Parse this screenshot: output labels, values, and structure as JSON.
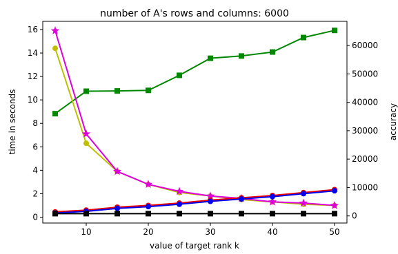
{
  "chart_data": {
    "type": "line",
    "title": "number of A's rows and columns: 6000",
    "xlabel": "value of target rank k",
    "ylabel_left": "time in seconds",
    "ylabel_right": "accuracy",
    "xlim": [
      3,
      52
    ],
    "ylim_left": [
      -0.5,
      16.7
    ],
    "ylim_right": [
      -2500,
      68500
    ],
    "x_ticks": [
      10,
      20,
      30,
      40,
      50
    ],
    "y_ticks_left": [
      0,
      2,
      4,
      6,
      8,
      10,
      12,
      14,
      16
    ],
    "y_ticks_right": [
      0,
      10000,
      20000,
      30000,
      40000,
      50000,
      60000
    ],
    "x": [
      5,
      10,
      15,
      20,
      25,
      30,
      35,
      40,
      45,
      50
    ],
    "grid": false,
    "series": [
      {
        "axis": "right",
        "color": "#008800",
        "marker": "square",
        "values": [
          36000,
          43900,
          44000,
          44200,
          49500,
          55500,
          56300,
          57700,
          62800,
          65300
        ]
      },
      {
        "axis": "left",
        "color": "#bfbf00",
        "marker": "circle",
        "values": [
          14.4,
          6.3,
          3.9,
          2.8,
          2.1,
          1.8,
          1.5,
          1.3,
          1.1,
          1.0
        ]
      },
      {
        "axis": "left",
        "color": "#dd00dd",
        "marker": "star",
        "values": [
          15.9,
          7.1,
          3.9,
          2.8,
          2.2,
          1.8,
          1.6,
          1.3,
          1.2,
          1.0
        ]
      },
      {
        "axis": "left",
        "color": "#ee0000",
        "marker": "circle",
        "values": [
          0.45,
          0.6,
          0.85,
          1.0,
          1.2,
          1.45,
          1.65,
          1.85,
          2.1,
          2.35
        ]
      },
      {
        "axis": "left",
        "color": "#0000ee",
        "marker": "circle",
        "values": [
          0.35,
          0.5,
          0.75,
          0.9,
          1.1,
          1.35,
          1.55,
          1.75,
          2.0,
          2.25
        ]
      },
      {
        "axis": "left",
        "color": "#000000",
        "marker": "square",
        "values": [
          0.3,
          0.3,
          0.3,
          0.3,
          0.3,
          0.3,
          0.3,
          0.3,
          0.3,
          0.3
        ]
      }
    ]
  }
}
